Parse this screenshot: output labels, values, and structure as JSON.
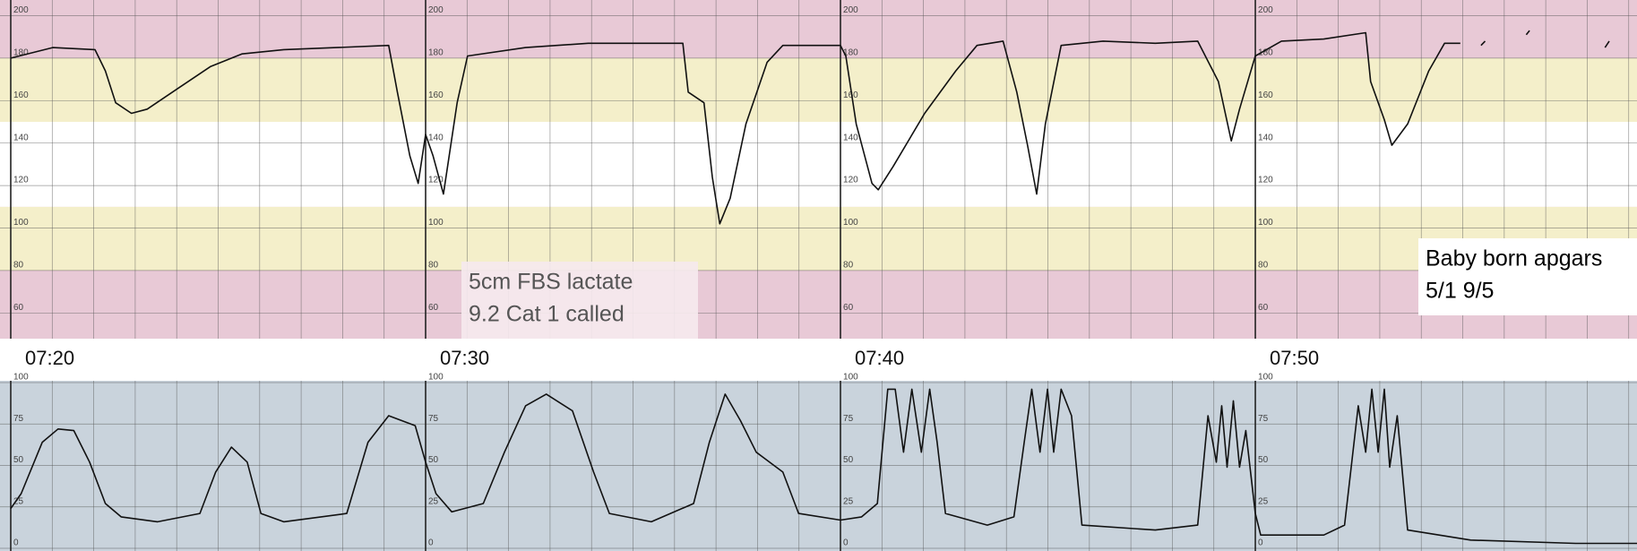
{
  "chart_data": [
    {
      "type": "line",
      "color": "#111111",
      "xlim": [
        440,
        479.2
      ],
      "ylim": [
        50,
        200
      ],
      "xticks": [
        {
          "value": 440,
          "label": "07:20"
        },
        {
          "value": 450,
          "label": "07:30"
        },
        {
          "value": 460,
          "label": "07:40"
        },
        {
          "value": 470,
          "label": "07:50"
        }
      ],
      "yticks": [
        60,
        80,
        100,
        120,
        140,
        160,
        180,
        200
      ],
      "bands": [
        {
          "from": 150,
          "to": 180,
          "color": "#f4efca"
        },
        {
          "from": 80,
          "to": 110,
          "color": "#f4efca"
        },
        {
          "from": 110,
          "to": 150,
          "color": "#ffffff"
        }
      ],
      "background": "#e8c9d6",
      "x": [
        440,
        441.01,
        442.03,
        442.28,
        442.53,
        442.91,
        443.29,
        444.05,
        444.81,
        445.57,
        446.58,
        447.85,
        449.11,
        449.32,
        449.62,
        449.82,
        450,
        450.18,
        450.43,
        450.76,
        451.01,
        452.41,
        453.92,
        455.44,
        456.2,
        456.33,
        456.71,
        456.91,
        457.09,
        457.34,
        457.72,
        458.23,
        458.61,
        460,
        460.13,
        460.38,
        460.76,
        460.91,
        461.27,
        462.03,
        462.78,
        463.29,
        463.92,
        464.25,
        464.51,
        464.73,
        464.94,
        465.32,
        466.33,
        467.59,
        468.61,
        469.11,
        469.42,
        469.62,
        470,
        470.63,
        471.65,
        472.66,
        472.78,
        473.11,
        473.29,
        473.67,
        474.18,
        474.56,
        474.94,
        null,
        475.44,
        475.54,
        null,
        476.53,
        476.61,
        null,
        478.43,
        478.53
      ],
      "values": [
        180,
        185,
        184,
        174,
        159,
        154,
        156,
        166,
        176,
        182,
        184,
        185,
        186,
        164,
        134,
        121,
        144,
        134,
        116,
        159,
        181,
        185,
        187,
        187,
        187,
        164,
        159,
        124,
        102,
        114,
        149,
        178,
        186,
        186,
        181,
        149,
        121,
        118,
        129,
        154,
        174,
        186,
        188,
        164,
        139,
        116,
        149,
        186,
        188,
        187,
        188,
        169,
        141,
        156,
        181,
        188,
        189,
        192,
        169,
        151,
        139,
        149,
        174,
        187,
        187,
        null,
        186,
        188,
        null,
        191,
        193,
        null,
        185,
        188
      ],
      "annotations": [
        {
          "lines": [
            "5cm FBS lactate",
            "9.2 Cat 1 called"
          ]
        },
        {
          "lines": [
            "Baby born apgars",
            "5/1 9/5"
          ]
        }
      ]
    },
    {
      "type": "line",
      "color": "#111111",
      "xlim": [
        440,
        479.2
      ],
      "ylim": [
        0,
        100
      ],
      "xticks": [
        440,
        450,
        460,
        470
      ],
      "yticks": [
        0,
        25,
        50,
        75,
        100
      ],
      "background": "#c9d3dc",
      "x": [
        440,
        440.25,
        440.76,
        441.14,
        441.52,
        441.9,
        442.28,
        442.66,
        443.54,
        444.56,
        444.94,
        445.32,
        445.7,
        446.03,
        446.58,
        448.1,
        448.61,
        449.11,
        449.75,
        450,
        450.25,
        450.63,
        451.39,
        451.9,
        452.41,
        452.91,
        453.54,
        454.05,
        454.43,
        455.44,
        456.46,
        456.84,
        457.22,
        457.59,
        457.97,
        458.61,
        458.99,
        460,
        460.51,
        460.89,
        461.14,
        461.32,
        461.52,
        461.72,
        461.95,
        462.15,
        462.33,
        462.53,
        463.54,
        464.18,
        464.43,
        464.61,
        464.81,
        464.99,
        465.14,
        465.32,
        465.57,
        465.82,
        467.59,
        468.61,
        468.86,
        469.06,
        469.19,
        469.32,
        469.47,
        469.62,
        469.77,
        470,
        470.13,
        471.65,
        472.15,
        472.48,
        472.66,
        472.81,
        472.96,
        473.11,
        473.24,
        473.42,
        473.67,
        475.19,
        477.72,
        479.2
      ],
      "values": [
        24,
        33,
        64,
        72,
        71,
        52,
        27,
        19,
        16,
        21,
        46,
        61,
        52,
        21,
        16,
        21,
        64,
        80,
        74,
        52,
        33,
        22,
        27,
        58,
        86,
        93,
        83,
        46,
        21,
        16,
        27,
        64,
        93,
        77,
        58,
        46,
        21,
        17,
        19,
        27,
        96,
        96,
        58,
        96,
        58,
        96,
        64,
        21,
        14,
        19,
        64,
        96,
        58,
        96,
        58,
        96,
        80,
        14,
        11,
        14,
        80,
        52,
        86,
        49,
        89,
        49,
        71,
        21,
        8,
        8,
        14,
        86,
        58,
        96,
        58,
        96,
        49,
        80,
        11,
        5,
        3,
        3
      ]
    }
  ]
}
